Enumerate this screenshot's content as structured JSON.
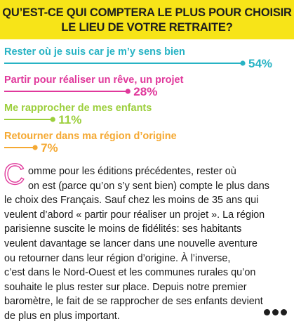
{
  "title": {
    "line1": "QU’EST-CE QUI COMPTERA LE PLUS POUR CHOISIR",
    "line2": "LE LIEU DE VOTRE RETRAITE?"
  },
  "colors": {
    "title_band": "#f7e418",
    "dropcap": "#e0389b",
    "dots": "#1e1e1e"
  },
  "chart_data": {
    "type": "bar",
    "categories": [
      "Rester où je suis car je m’y sens bien",
      "Partir pour réaliser un rêve, un projet",
      "Me rapprocher de mes enfants",
      "Retourner dans ma région d’origine"
    ],
    "values": [
      54,
      28,
      11,
      7
    ],
    "value_labels": [
      "54%",
      "28%",
      "11%",
      "7%"
    ],
    "colors": [
      "#27b3c4",
      "#e0389b",
      "#9ccf3c",
      "#f5a933"
    ],
    "unit": "%",
    "xlim": [
      0,
      54
    ]
  },
  "article": {
    "dropcap": "C",
    "lines": [
      "omme pour les éditions précédentes, rester où",
      "on est (parce qu’on s’y sent bien) compte le plus dans",
      "le choix des Français. Sauf chez les moins de 35 ans qui",
      "veulent d’abord « partir pour réaliser un projet ». La région",
      "parisienne suscite le moins de fidélités: ses habitants",
      "veulent davantage se lancer dans une nouvelle aventure",
      "ou retourner dans leur région d’origine. À l’inverse,",
      "c’est dans le Nord-Ouest et les communes rurales qu’on",
      "souhaite le plus rester sur place. Depuis notre premier",
      "baromètre, le fait de se rapprocher de ses enfants devient",
      "de plus en plus important."
    ]
  }
}
